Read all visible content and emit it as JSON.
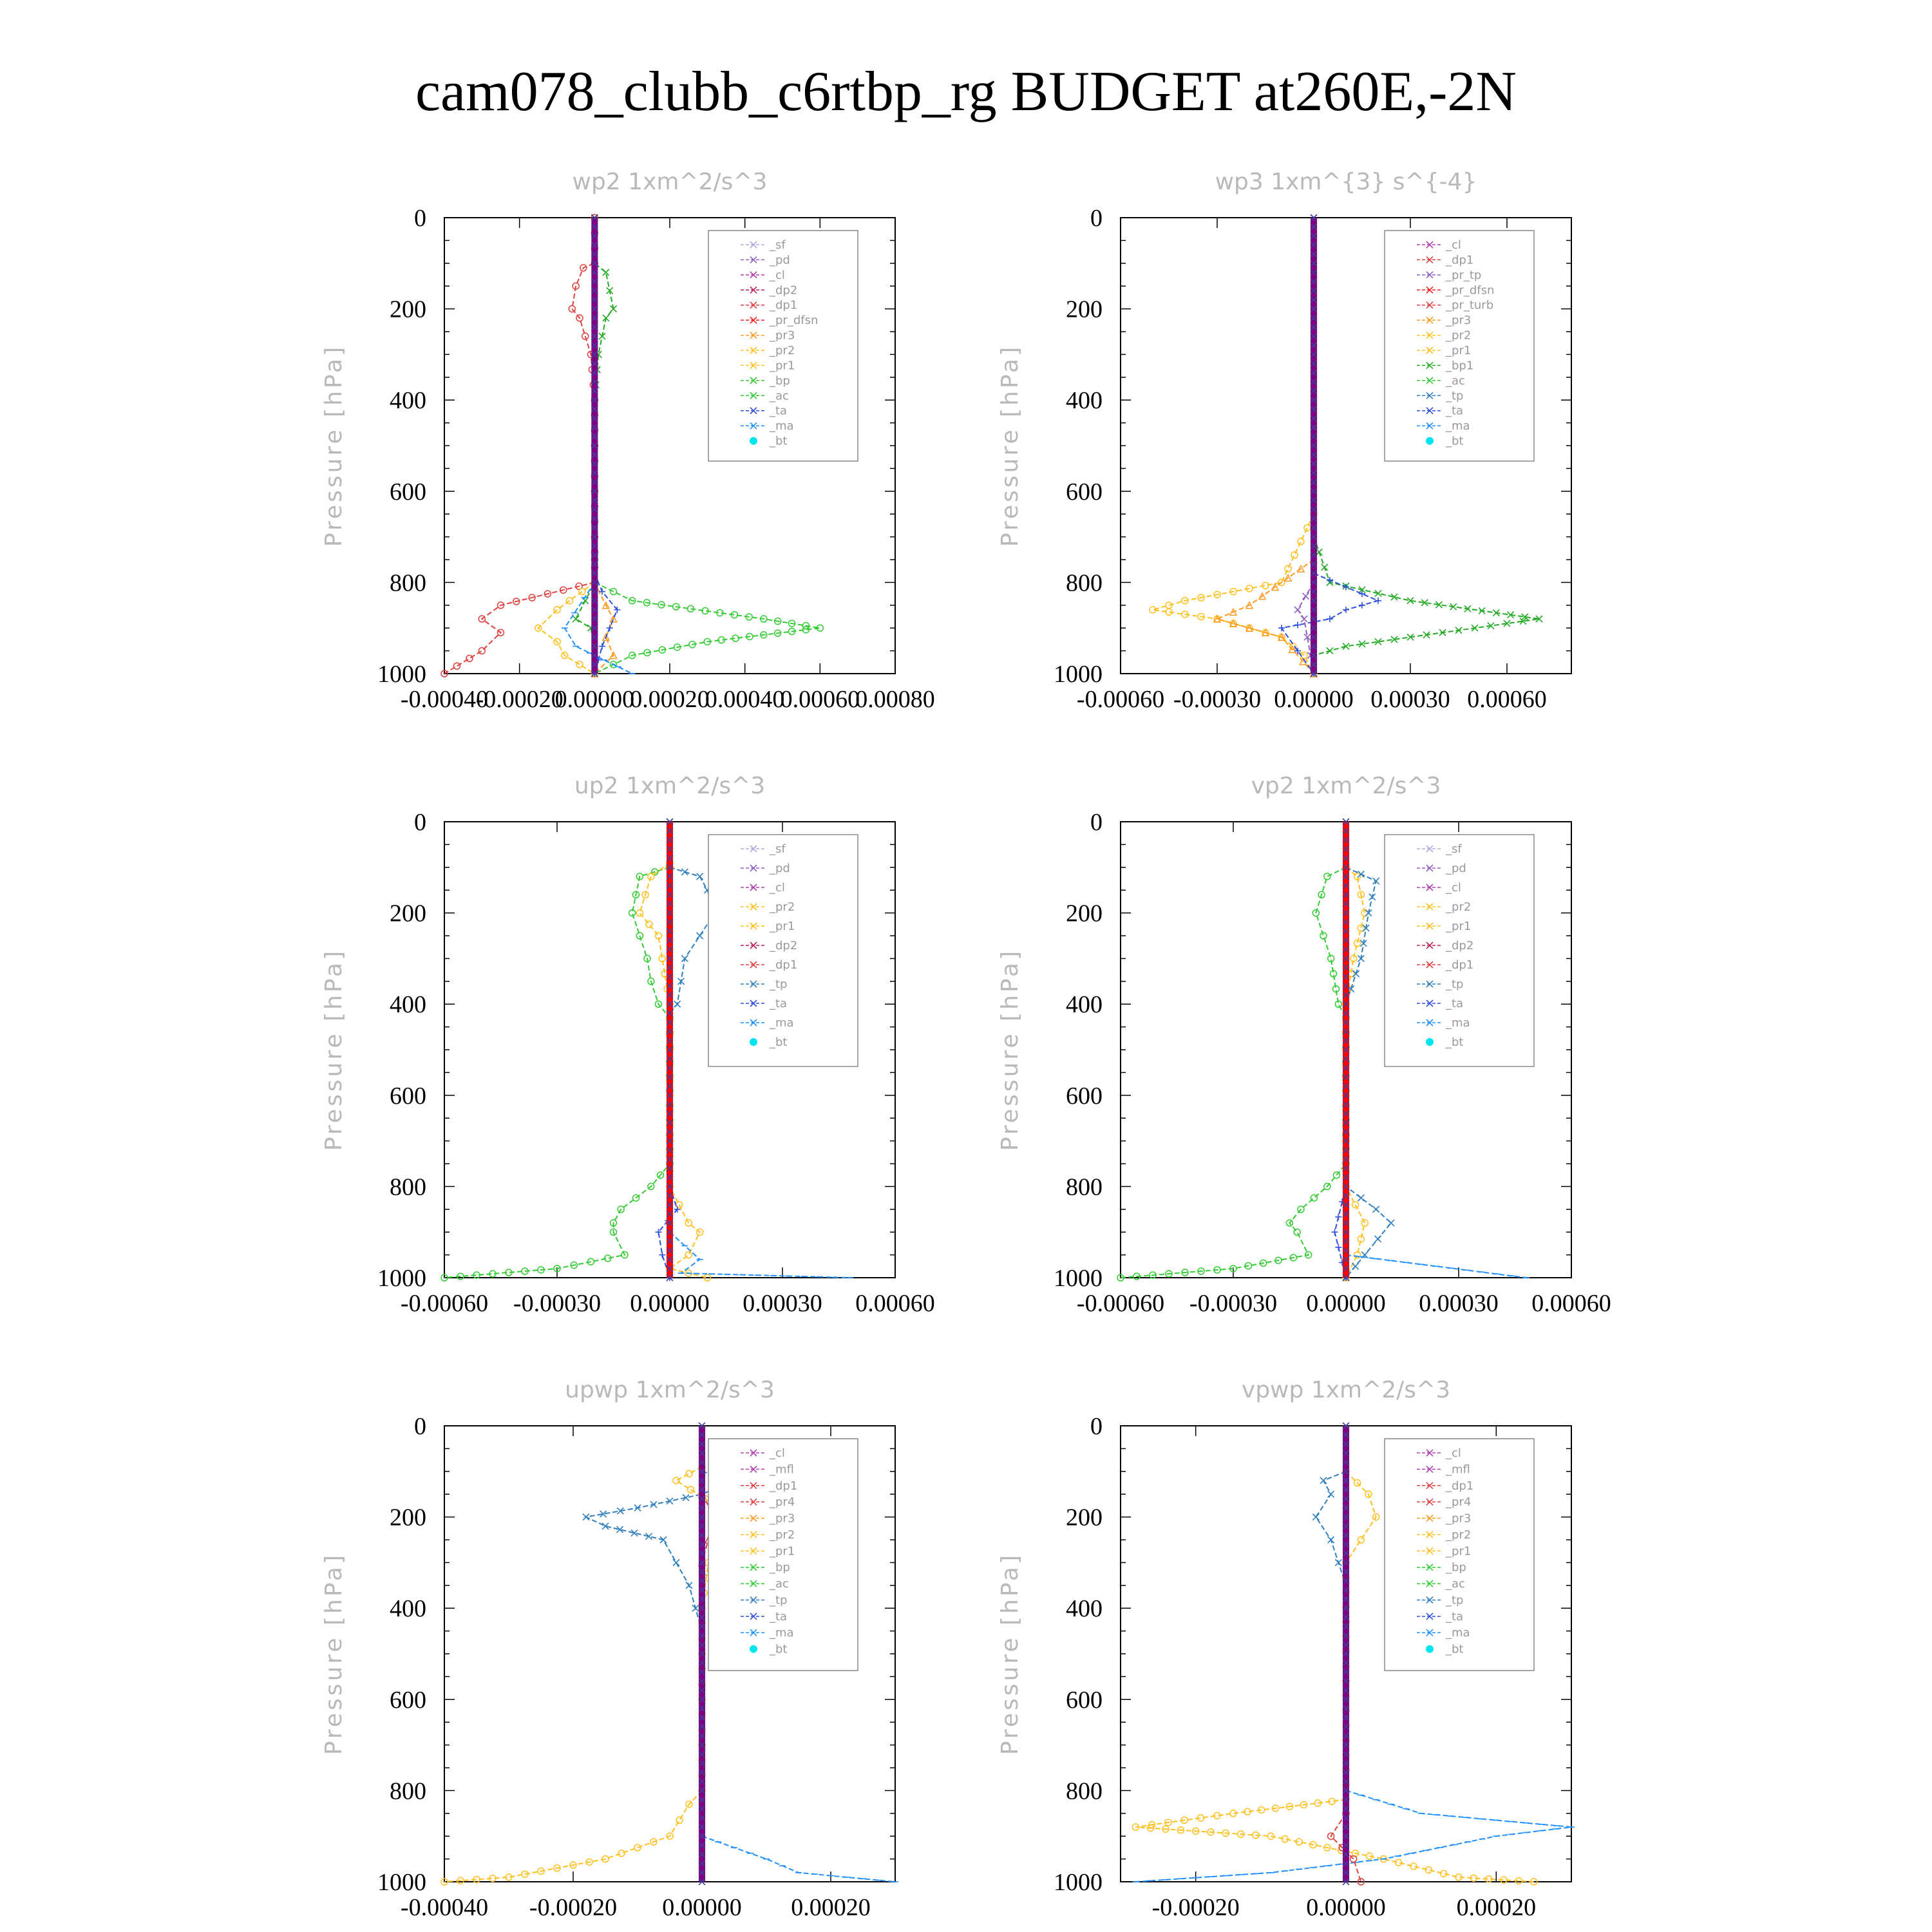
{
  "title": "cam078_clubb_c6rtbp_rg  BUDGET at260E,-2N",
  "chart_data": [
    {
      "type": "line",
      "title": "wp2   1xm^2/s^3",
      "ylabel": "Pressure [hPa]",
      "ylim": [
        1000,
        0
      ],
      "yticks": [
        "0",
        "200",
        "400",
        "600",
        "800",
        "1000"
      ],
      "xlim": [
        -0.0004,
        0.0008
      ],
      "xticks": [
        "-0.00040",
        "-0.00020",
        "0.00000",
        "0.00020",
        "0.00040",
        "0.00060",
        "0.00080"
      ],
      "legend": [
        "_sf",
        "_pd",
        "_cl",
        "_dp2",
        "_dp1",
        "_pr_dfsn",
        "_pr3",
        "_pr2",
        "_pr1",
        "_bp",
        "_ac",
        "_ta",
        "_ma",
        "_bt"
      ],
      "series": [
        {
          "name": "_bp",
          "color": "#33cc33",
          "marker": "circle",
          "y": [
            750,
            800,
            840,
            880,
            900,
            930,
            960,
            1000
          ],
          "x": [
            0,
            0,
            0.0001,
            0.00045,
            0.0006,
            0.0003,
            0.0001,
            0
          ]
        },
        {
          "name": "_pr1",
          "color": "#22aa22",
          "marker": "x",
          "y": [
            0,
            100,
            120,
            200,
            220,
            300,
            400,
            800,
            880,
            900,
            950,
            1000
          ],
          "x": [
            0,
            0,
            3e-05,
            5e-05,
            3e-05,
            1e-05,
            0,
            0,
            -5e-05,
            -1e-05,
            0,
            0
          ]
        },
        {
          "name": "_dp1",
          "color": "#e04040",
          "marker": "circle",
          "y": [
            0,
            100,
            110,
            150,
            200,
            220,
            300,
            400,
            800,
            850,
            880,
            910,
            950,
            1000
          ],
          "x": [
            0,
            0,
            -3e-05,
            -5e-05,
            -6e-05,
            -4e-05,
            -1e-05,
            0,
            0,
            -0.00025,
            -0.0003,
            -0.00025,
            -0.0003,
            -0.0004
          ]
        },
        {
          "name": "_pr2",
          "color": "#ffc020",
          "marker": "circle",
          "y": [
            800,
            860,
            900,
            930,
            960,
            1000
          ],
          "x": [
            0,
            -0.0001,
            -0.00015,
            -0.0001,
            -8e-05,
            0
          ]
        },
        {
          "name": "_pr3",
          "color": "#ff9a20",
          "marker": "triangle",
          "y": [
            800,
            850,
            880,
            920,
            960,
            1000
          ],
          "x": [
            0,
            3e-05,
            5e-05,
            3e-05,
            5e-05,
            0
          ]
        },
        {
          "name": "_ta",
          "color": "#3050dd",
          "marker": "plus",
          "y": [
            780,
            820,
            860,
            900,
            940,
            1000
          ],
          "x": [
            0,
            2e-05,
            6e-05,
            4e-05,
            2e-05,
            0
          ]
        },
        {
          "name": "_ma",
          "color": "#2090ff",
          "marker": "dash",
          "y": [
            800,
            900,
            940,
            1000
          ],
          "x": [
            0,
            -8e-05,
            -5e-05,
            0.0001
          ]
        },
        {
          "name": "_bt",
          "color": "#800080",
          "marker": "star",
          "y": [
            0,
            1000
          ],
          "x": [
            0,
            0
          ]
        }
      ]
    },
    {
      "type": "line",
      "title": "wp3   1xm^{3} s^{-4}",
      "ylabel": "Pressure [hPa]",
      "ylim": [
        1000,
        0
      ],
      "yticks": [
        "0",
        "200",
        "400",
        "600",
        "800",
        "1000"
      ],
      "xlim": [
        -0.0006,
        0.0008
      ],
      "xticks": [
        "-0.00060",
        "-0.00030",
        "0.00000",
        "0.00030",
        "0.00060"
      ],
      "legend": [
        "_cl",
        "_dp1",
        "_pr_tp",
        "_pr_dfsn",
        "_pr_turb",
        "_pr3",
        "_pr2",
        "_pr1",
        "_bp1",
        "_ac",
        "_tp",
        "_ta",
        "_ma",
        "_bt"
      ],
      "series": [
        {
          "name": "_bp1",
          "color": "#22aa22",
          "marker": "x",
          "y": [
            700,
            800,
            840,
            880,
            910,
            940,
            960,
            1000
          ],
          "x": [
            0,
            5e-05,
            0.0003,
            0.0007,
            0.0004,
            0.0001,
            0,
            0
          ]
        },
        {
          "name": "_pr1",
          "color": "#ffc020",
          "marker": "circle",
          "y": [
            650,
            800,
            840,
            860,
            880,
            920,
            960,
            1000
          ],
          "x": [
            0,
            -0.0001,
            -0.0004,
            -0.0005,
            -0.0003,
            -0.0001,
            -3e-05,
            0
          ]
        },
        {
          "name": "_pr2",
          "color": "#ff9a20",
          "marker": "triangle",
          "y": [
            750,
            850,
            880,
            920,
            1000
          ],
          "x": [
            0,
            -0.0002,
            -0.0003,
            -0.0001,
            0
          ]
        },
        {
          "name": "_ta",
          "color": "#3050dd",
          "marker": "plus",
          "y": [
            780,
            840,
            860,
            880,
            900,
            950,
            1000
          ],
          "x": [
            0,
            0.0002,
            0.0001,
            5e-05,
            -0.0001,
            -5e-05,
            0
          ]
        },
        {
          "name": "_dp1",
          "color": "#9060c0",
          "marker": "x",
          "y": [
            800,
            860,
            880,
            1000
          ],
          "x": [
            0,
            -5e-05,
            -3e-05,
            0
          ]
        },
        {
          "name": "_bt",
          "color": "#800080",
          "marker": "star",
          "y": [
            0,
            1000
          ],
          "x": [
            0,
            0
          ]
        }
      ]
    },
    {
      "type": "line",
      "title": "up2   1xm^2/s^3",
      "ylabel": "Pressure [hPa]",
      "ylim": [
        1000,
        0
      ],
      "yticks": [
        "0",
        "200",
        "400",
        "600",
        "800",
        "1000"
      ],
      "xlim": [
        -0.0006,
        0.0006
      ],
      "xticks": [
        "-0.00060",
        "-0.00030",
        "0.00000",
        "0.00030",
        "0.00060"
      ],
      "legend": [
        "_sf",
        "_pd",
        "_cl",
        "_pr2",
        "_pr1",
        "_dp2",
        "_dp1",
        "_tp",
        "_ta",
        "_ma",
        "_bt"
      ],
      "series": [
        {
          "name": "_dp1",
          "color": "#33cc33",
          "marker": "circle",
          "y": [
            100,
            120,
            200,
            250,
            300,
            350,
            400,
            430,
            750,
            800,
            850,
            880,
            900,
            950,
            980,
            1000
          ],
          "x": [
            0,
            -8e-05,
            -0.0001,
            -8e-05,
            -6e-05,
            -5e-05,
            -3e-05,
            0,
            0,
            -5e-05,
            -0.00013,
            -0.00015,
            -0.00015,
            -0.00012,
            -0.0003,
            -0.0006
          ]
        },
        {
          "name": "_pr1",
          "color": "#ffc020",
          "marker": "circle",
          "y": [
            90,
            120,
            200,
            250,
            300,
            400,
            800,
            880,
            900,
            950,
            980,
            1000
          ],
          "x": [
            0,
            -5e-05,
            -8e-05,
            -3e-05,
            -2e-05,
            0,
            0,
            5e-05,
            8e-05,
            5e-05,
            0,
            0.0001
          ]
        },
        {
          "name": "_tp",
          "color": "#2f7fbf",
          "marker": "x",
          "y": [
            100,
            120,
            150,
            200,
            250,
            300,
            350,
            400,
            420
          ],
          "x": [
            0,
            8e-05,
            0.0001,
            0.00012,
            8e-05,
            4e-05,
            3e-05,
            2e-05,
            0
          ]
        },
        {
          "name": "_ta",
          "color": "#3050dd",
          "marker": "plus",
          "y": [
            800,
            850,
            900,
            950,
            1000
          ],
          "x": [
            0,
            2e-05,
            -3e-05,
            -2e-05,
            0
          ]
        },
        {
          "name": "_ma",
          "color": "#2090ff",
          "marker": "dash",
          "y": [
            900,
            960,
            990,
            1000
          ],
          "x": [
            0,
            8e-05,
            3e-05,
            0.00048
          ]
        },
        {
          "name": "_bt",
          "color": "#ff0000",
          "marker": "star",
          "y": [
            0,
            1000
          ],
          "x": [
            0,
            0
          ]
        }
      ]
    },
    {
      "type": "line",
      "title": "vp2   1xm^2/s^3",
      "ylabel": "Pressure [hPa]",
      "ylim": [
        1000,
        0
      ],
      "yticks": [
        "0",
        "200",
        "400",
        "600",
        "800",
        "1000"
      ],
      "xlim": [
        -0.0006,
        0.0006
      ],
      "xticks": [
        "-0.00060",
        "-0.00030",
        "0.00000",
        "0.00030",
        "0.00060"
      ],
      "legend": [
        "_sf",
        "_pd",
        "_cl",
        "_pr2",
        "_pr1",
        "_dp2",
        "_dp1",
        "_tp",
        "_ta",
        "_ma",
        "_bt"
      ],
      "series": [
        {
          "name": "_dp1",
          "color": "#33cc33",
          "marker": "circle",
          "y": [
            100,
            120,
            200,
            250,
            300,
            400,
            430,
            750,
            800,
            850,
            880,
            900,
            950,
            980,
            1000
          ],
          "x": [
            0,
            -5e-05,
            -8e-05,
            -6e-05,
            -4e-05,
            -2e-05,
            0,
            0,
            -5e-05,
            -0.00012,
            -0.00015,
            -0.00013,
            -0.0001,
            -0.0003,
            -0.0006
          ]
        },
        {
          "name": "_pr1",
          "color": "#ffc020",
          "marker": "circle",
          "y": [
            100,
            120,
            200,
            300,
            400,
            800,
            880,
            950,
            1000
          ],
          "x": [
            0,
            3e-05,
            5e-05,
            2e-05,
            0,
            0,
            5e-05,
            3e-05,
            0
          ]
        },
        {
          "name": "_tp",
          "color": "#2f7fbf",
          "marker": "x",
          "y": [
            100,
            130,
            200,
            300,
            400,
            800,
            850,
            880,
            950,
            1000
          ],
          "x": [
            0,
            8e-05,
            6e-05,
            4e-05,
            0,
            0,
            8e-05,
            0.00012,
            5e-05,
            0
          ]
        },
        {
          "name": "_ta",
          "color": "#3050dd",
          "marker": "plus",
          "y": [
            800,
            900,
            1000
          ],
          "x": [
            0,
            -3e-05,
            0
          ]
        },
        {
          "name": "_ma",
          "color": "#2090ff",
          "marker": "dash",
          "y": [
            950,
            1000
          ],
          "x": [
            0,
            0.00048
          ]
        },
        {
          "name": "_bt",
          "color": "#ff0000",
          "marker": "star",
          "y": [
            0,
            1000
          ],
          "x": [
            0,
            0
          ]
        }
      ]
    },
    {
      "type": "line",
      "title": "upwp   1xm^2/s^3",
      "ylabel": "Pressure [hPa]",
      "ylim": [
        1000,
        0
      ],
      "yticks": [
        "0",
        "200",
        "400",
        "600",
        "800",
        "1000"
      ],
      "xlim": [
        -0.0004,
        0.0003
      ],
      "xticks": [
        "-0.00040",
        "-0.00020",
        "0.00000",
        "0.00020"
      ],
      "legend": [
        "_cl",
        "_mfl",
        "_dp1",
        "_pr4",
        "_pr3",
        "_pr2",
        "_pr1",
        "_bp",
        "_ac",
        "_tp",
        "_ta",
        "_ma",
        "_bt"
      ],
      "series": [
        {
          "name": "_tp",
          "color": "#2f7fbf",
          "marker": "x",
          "y": [
            100,
            120,
            150,
            180,
            200,
            220,
            250,
            300,
            350,
            400,
            450
          ],
          "x": [
            0,
            5e-05,
            0,
            -0.0001,
            -0.00018,
            -0.00015,
            -6e-05,
            -4e-05,
            -2e-05,
            -1e-05,
            0
          ]
        },
        {
          "name": "_pr1",
          "color": "#ffc020",
          "marker": "circle",
          "y": [
            90,
            120,
            200,
            250,
            300,
            400,
            800,
            830,
            900,
            950,
            990,
            1000
          ],
          "x": [
            0,
            -4e-05,
            5e-05,
            3e-05,
            1e-05,
            0,
            0,
            -2e-05,
            -5e-05,
            -0.00015,
            -0.0003,
            -0.0004
          ]
        },
        {
          "name": "_pr3",
          "color": "#e04040",
          "marker": "triangle",
          "y": [
            150,
            200,
            250,
            300
          ],
          "x": [
            0,
            2e-05,
            1e-05,
            0
          ]
        },
        {
          "name": "_ma",
          "color": "#2090ff",
          "marker": "dash",
          "y": [
            900,
            950,
            980,
            1000
          ],
          "x": [
            0,
            0.0001,
            0.00015,
            0.0003
          ]
        },
        {
          "name": "_bt",
          "color": "#800080",
          "marker": "star",
          "y": [
            0,
            1000
          ],
          "x": [
            0,
            0
          ]
        }
      ]
    },
    {
      "type": "line",
      "title": "vpwp   1xm^2/s^3",
      "ylabel": "Pressure [hPa]",
      "ylim": [
        1000,
        0
      ],
      "yticks": [
        "0",
        "200",
        "400",
        "600",
        "800",
        "1000"
      ],
      "xlim": [
        -0.0003,
        0.0003
      ],
      "xticks": [
        "-0.00020",
        "0.00000",
        "0.00020"
      ],
      "legend": [
        "_cl",
        "_mfl",
        "_dp1",
        "_pr4",
        "_pr3",
        "_pr2",
        "_pr1",
        "_bp",
        "_ac",
        "_tp",
        "_ta",
        "_ma",
        "_bt"
      ],
      "series": [
        {
          "name": "_tp",
          "color": "#2f7fbf",
          "marker": "x",
          "y": [
            100,
            120,
            150,
            200,
            250,
            300,
            350
          ],
          "x": [
            0,
            -3e-05,
            -2e-05,
            -4e-05,
            -2e-05,
            -1e-05,
            0
          ]
        },
        {
          "name": "_pr1",
          "color": "#ffc020",
          "marker": "circle",
          "y": [
            100,
            150,
            200,
            250,
            300,
            820,
            850,
            880,
            900,
            950,
            990,
            1000
          ],
          "x": [
            0,
            3e-05,
            4e-05,
            2e-05,
            0,
            0,
            -0.00015,
            -0.00028,
            -0.0001,
            5e-05,
            0.00015,
            0.00025
          ]
        },
        {
          "name": "_ma",
          "color": "#2090ff",
          "marker": "dash",
          "y": [
            800,
            850,
            880,
            900,
            950,
            980,
            1000
          ],
          "x": [
            0,
            0.0001,
            0.0003,
            0.0002,
            5e-05,
            -0.0001,
            -0.00028
          ]
        },
        {
          "name": "_dp1",
          "color": "#e04040",
          "marker": "circle",
          "y": [
            850,
            900,
            950,
            1000
          ],
          "x": [
            0,
            -2e-05,
            1e-05,
            2e-05
          ]
        },
        {
          "name": "_bt",
          "color": "#800080",
          "marker": "star",
          "y": [
            0,
            1000
          ],
          "x": [
            0,
            0
          ]
        }
      ]
    }
  ],
  "legend_colors": {
    "_sf": "#b0a8e0",
    "_pd": "#9060c0",
    "_cl": "#b040b0",
    "_mfl": "#b040b0",
    "_dp2": "#c02060",
    "_dp1": "#e04040",
    "_pr_dfsn": "#ff2020",
    "_pr_tp": "#9060c0",
    "_pr_turb": "#e04040",
    "_pr4": "#e04040",
    "_pr3": "#ff9a20",
    "_pr2": "#ffc020",
    "_pr1": "#ffc020",
    "_bp": "#33cc33",
    "_bp1": "#22aa22",
    "_ac": "#33cc33",
    "_tp": "#2f7fbf",
    "_ta": "#3050dd",
    "_ma": "#2090ff",
    "_bt": "#00e5ee"
  }
}
